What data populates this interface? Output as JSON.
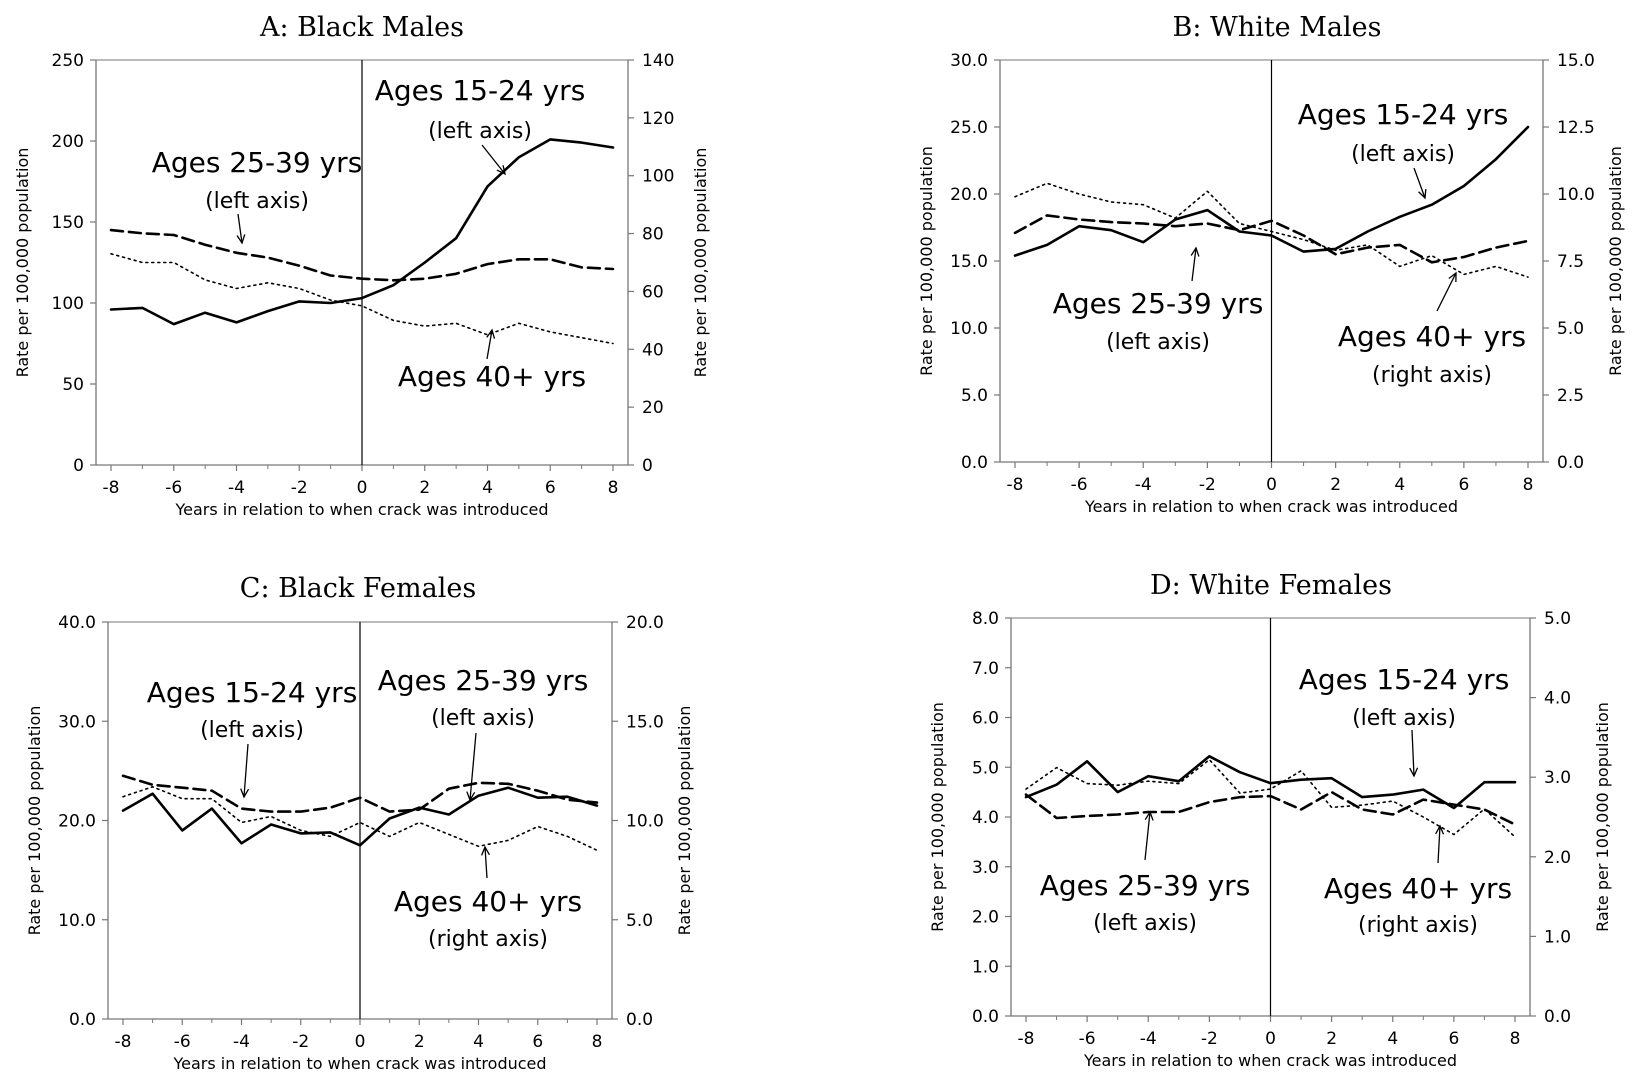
{
  "chart_data": [
    {
      "type": "line",
      "title": "A: Black Males",
      "xlabel": "Years in relation to when crack was introduced",
      "ylabel_left": "Rate per 100,000 population",
      "ylabel_right": "Rate per 100,000 population",
      "xlim": [
        -8,
        8
      ],
      "ylim_left": [
        0,
        250
      ],
      "ylim_right": [
        0,
        140
      ],
      "xticks": [
        "-8",
        "-6",
        "-4",
        "-2",
        "0",
        "2",
        "4",
        "6",
        "8"
      ],
      "yticks_left": [
        "0",
        "50",
        "100",
        "150",
        "200",
        "250"
      ],
      "yticks_right": [
        "0",
        "20",
        "40",
        "60",
        "80",
        "100",
        "120",
        "140"
      ],
      "x": [
        -8,
        -7,
        -6,
        -5,
        -4,
        -3,
        -2,
        -1,
        0,
        1,
        2,
        3,
        4,
        5,
        6,
        7,
        8
      ],
      "series": [
        {
          "name": "Ages 15-24 yrs",
          "axis": "left",
          "style": "solid",
          "values": [
            96,
            97,
            87,
            94,
            88,
            95,
            101,
            100,
            103,
            111,
            125,
            140,
            172,
            190,
            201,
            199,
            196
          ]
        },
        {
          "name": "Ages 25-39 yrs",
          "axis": "left",
          "style": "dashed",
          "values": [
            145,
            143,
            142,
            136,
            131,
            128,
            123,
            117,
            115,
            114,
            115,
            118,
            124,
            127,
            127,
            122,
            121
          ]
        },
        {
          "name": "Ages 40+ yrs",
          "axis": "right",
          "style": "dotted",
          "values": [
            73,
            70,
            70,
            64,
            61,
            63,
            61,
            57,
            55,
            50,
            48,
            49,
            45,
            49,
            46,
            44,
            42
          ]
        }
      ],
      "annotations": [
        {
          "title": "Ages 15-24 yrs",
          "sub": "(left axis)"
        },
        {
          "title": "Ages 25-39 yrs",
          "sub": "(left axis)"
        },
        {
          "title": "Ages 40+ yrs",
          "sub": ""
        }
      ]
    },
    {
      "type": "line",
      "title": "B: White Males",
      "xlabel": "Years in relation to when crack was introduced",
      "ylabel_left": "Rate per 100,000 population",
      "ylabel_right": "Rate per 100,000 population",
      "xlim": [
        -8,
        8
      ],
      "ylim_left": [
        0,
        30
      ],
      "ylim_right": [
        0,
        15
      ],
      "xticks": [
        "-8",
        "-6",
        "-4",
        "-2",
        "0",
        "2",
        "4",
        "6",
        "8"
      ],
      "yticks_left": [
        "0.0",
        "5.0",
        "10.0",
        "15.0",
        "20.0",
        "25.0",
        "30.0"
      ],
      "yticks_right": [
        "0.0",
        "2.5",
        "5.0",
        "7.5",
        "10.0",
        "12.5",
        "15.0"
      ],
      "x": [
        -8,
        -7,
        -6,
        -5,
        -4,
        -3,
        -2,
        -1,
        0,
        1,
        2,
        3,
        4,
        5,
        6,
        7,
        8
      ],
      "series": [
        {
          "name": "Ages 15-24 yrs",
          "axis": "left",
          "style": "solid",
          "values": [
            15.4,
            16.2,
            17.6,
            17.3,
            16.4,
            18.1,
            18.8,
            17.2,
            16.9,
            15.7,
            15.9,
            17.2,
            18.3,
            19.2,
            20.6,
            22.6,
            25.0
          ]
        },
        {
          "name": "Ages 25-39 yrs",
          "axis": "left",
          "style": "dashed",
          "values": [
            17.1,
            18.4,
            18.1,
            17.9,
            17.8,
            17.6,
            17.8,
            17.3,
            18.0,
            16.9,
            15.5,
            16.0,
            16.2,
            14.9,
            15.3,
            16.0,
            16.5
          ]
        },
        {
          "name": "Ages 40+ yrs",
          "axis": "right",
          "style": "dotted",
          "values": [
            9.9,
            10.4,
            10.0,
            9.7,
            9.6,
            9.1,
            10.1,
            8.9,
            8.6,
            8.3,
            7.9,
            8.1,
            7.3,
            7.7,
            7.0,
            7.3,
            6.9
          ]
        }
      ],
      "annotations": [
        {
          "title": "Ages 15-24 yrs",
          "sub": "(left axis)"
        },
        {
          "title": "Ages 25-39 yrs",
          "sub": "(left axis)"
        },
        {
          "title": "Ages 40+ yrs",
          "sub": "(right axis)"
        }
      ]
    },
    {
      "type": "line",
      "title": "C: Black Females",
      "xlabel": "Years in relation to when crack was introduced",
      "ylabel_left": "Rate per 100,000 population",
      "ylabel_right": "Rate per 100,000 population",
      "xlim": [
        -8,
        8
      ],
      "ylim_left": [
        0,
        40
      ],
      "ylim_right": [
        0,
        20
      ],
      "xticks": [
        "-8",
        "-6",
        "-4",
        "-2",
        "0",
        "2",
        "4",
        "6",
        "8"
      ],
      "yticks_left": [
        "0.0",
        "10.0",
        "20.0",
        "30.0",
        "40.0"
      ],
      "yticks_right": [
        "0.0",
        "5.0",
        "10.0",
        "15.0",
        "20.0"
      ],
      "x": [
        -8,
        -7,
        -6,
        -5,
        -4,
        -3,
        -2,
        -1,
        0,
        1,
        2,
        3,
        4,
        5,
        6,
        7,
        8
      ],
      "series": [
        {
          "name": "Ages 15-24 yrs",
          "axis": "left",
          "style": "solid",
          "values": [
            21.0,
            22.7,
            19.0,
            21.2,
            17.7,
            19.6,
            18.7,
            18.8,
            17.5,
            20.2,
            21.3,
            20.6,
            22.5,
            23.3,
            22.3,
            22.4,
            21.5
          ]
        },
        {
          "name": "Ages 25-39 yrs",
          "axis": "left",
          "style": "dashed",
          "values": [
            24.5,
            23.6,
            23.3,
            23.0,
            21.2,
            20.9,
            20.9,
            21.3,
            22.3,
            20.9,
            21.1,
            23.2,
            23.8,
            23.7,
            23.0,
            22.1,
            21.8
          ]
        },
        {
          "name": "Ages 40+ yrs",
          "axis": "right",
          "style": "dotted",
          "values": [
            11.2,
            11.7,
            11.1,
            11.1,
            9.9,
            10.2,
            9.5,
            9.2,
            9.9,
            9.2,
            9.9,
            9.3,
            8.7,
            9.0,
            9.7,
            9.2,
            8.5
          ]
        }
      ],
      "annotations": [
        {
          "title": "Ages 15-24 yrs",
          "sub": "(left axis)"
        },
        {
          "title": "Ages 25-39 yrs",
          "sub": "(left axis)"
        },
        {
          "title": "Ages 40+ yrs",
          "sub": "(right axis)"
        }
      ]
    },
    {
      "type": "line",
      "title": "D: White Females",
      "xlabel": "Years in relation to when crack was introduced",
      "ylabel_left": "Rate per 100,000 population",
      "ylabel_right": "Rate per 100,000 population",
      "xlim": [
        -8,
        8
      ],
      "ylim_left": [
        0,
        8
      ],
      "ylim_right": [
        0,
        5
      ],
      "xticks": [
        "-8",
        "-6",
        "-4",
        "-2",
        "0",
        "2",
        "4",
        "6",
        "8"
      ],
      "yticks_left": [
        "0.0",
        "1.0",
        "2.0",
        "3.0",
        "4.0",
        "5.0",
        "6.0",
        "7.0",
        "8.0"
      ],
      "yticks_right": [
        "0.0",
        "1.0",
        "2.0",
        "3.0",
        "4.0",
        "5.0"
      ],
      "x": [
        -8,
        -7,
        -6,
        -5,
        -4,
        -3,
        -2,
        -1,
        0,
        1,
        2,
        3,
        4,
        5,
        6,
        7,
        8
      ],
      "series": [
        {
          "name": "Ages 15-24 yrs",
          "axis": "left",
          "style": "solid",
          "values": [
            4.4,
            4.65,
            5.12,
            4.5,
            4.82,
            4.72,
            5.22,
            4.9,
            4.68,
            4.75,
            4.78,
            4.4,
            4.45,
            4.55,
            4.18,
            4.7,
            4.7
          ]
        },
        {
          "name": "Ages 25-39 yrs",
          "axis": "left",
          "style": "dashed",
          "values": [
            4.45,
            3.98,
            4.02,
            4.05,
            4.1,
            4.1,
            4.3,
            4.4,
            4.42,
            4.15,
            4.5,
            4.15,
            4.05,
            4.35,
            4.25,
            4.15,
            3.85
          ]
        },
        {
          "name": "Ages 40+ yrs",
          "axis": "right",
          "style": "dotted",
          "values": [
            2.85,
            3.12,
            2.92,
            2.9,
            2.95,
            2.92,
            3.22,
            2.8,
            2.85,
            3.08,
            2.62,
            2.65,
            2.7,
            2.5,
            2.28,
            2.6,
            2.25
          ]
        }
      ],
      "annotations": [
        {
          "title": "Ages 15-24 yrs",
          "sub": "(left axis)"
        },
        {
          "title": "Ages 25-39 yrs",
          "sub": "(left axis)"
        },
        {
          "title": "Ages 40+ yrs",
          "sub": "(right axis)"
        }
      ]
    }
  ]
}
